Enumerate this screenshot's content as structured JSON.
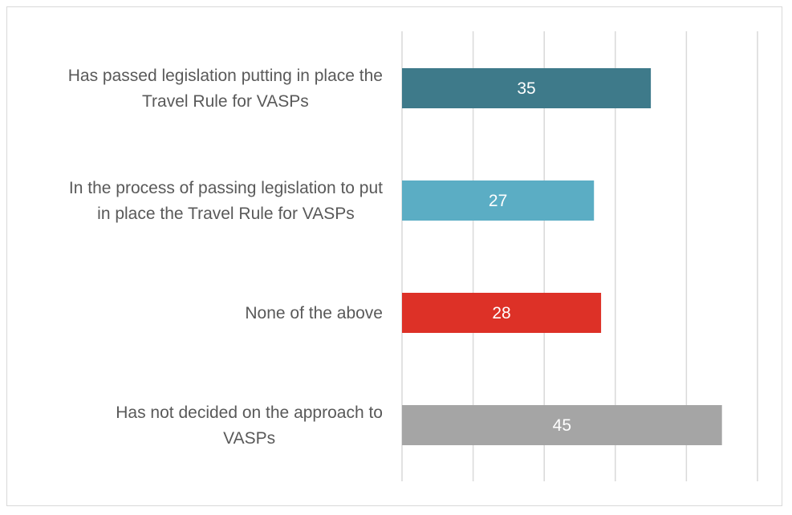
{
  "chart_data": {
    "type": "bar",
    "orientation": "horizontal",
    "categories": [
      [
        "Has passed legislation putting in place the",
        "Travel Rule for VASPs"
      ],
      [
        "In the process of passing legislation to put",
        "in place the Travel Rule for VASPs"
      ],
      [
        "None of the above"
      ],
      [
        "Has not decided on the approach to",
        "VASPs"
      ]
    ],
    "values": [
      35,
      27,
      28,
      45
    ],
    "colors": [
      "#3e7a8a",
      "#5badc4",
      "#dd3127",
      "#a5a5a5"
    ],
    "data_labels": [
      "35",
      "27",
      "28",
      "45"
    ],
    "xlim": [
      0,
      50
    ],
    "x_gridline_step": 10,
    "grid": true,
    "legend": false,
    "title": "",
    "xlabel": "",
    "ylabel": ""
  }
}
